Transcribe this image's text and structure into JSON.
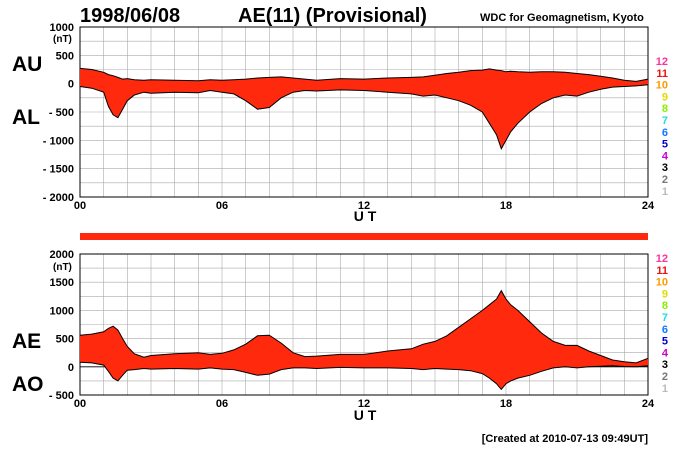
{
  "header": {
    "date": "1998/06/08",
    "title": "AE(11) (Provisional)",
    "source": "WDC for Geomagnetism, Kyoto"
  },
  "footer": {
    "created": "[Created at 2010-07-13 09:49UT]"
  },
  "colors": {
    "fill": "#ff2a0e",
    "outline": "#000000",
    "grid": "#aaaaaa",
    "highlight": "#ffdd00"
  },
  "station_legend": [
    {
      "label": "12",
      "color": "#ff3399"
    },
    {
      "label": "11",
      "color": "#ee1111"
    },
    {
      "label": "10",
      "color": "#ff9900"
    },
    {
      "label": "9",
      "color": "#dddd00"
    },
    {
      "label": "8",
      "color": "#88ee00"
    },
    {
      "label": "7",
      "color": "#22dddd"
    },
    {
      "label": "6",
      "color": "#1177ff"
    },
    {
      "label": "5",
      "color": "#0000cc"
    },
    {
      "label": "4",
      "color": "#cc00cc"
    },
    {
      "label": "3",
      "color": "#000000"
    },
    {
      "label": "2",
      "color": "#777777"
    },
    {
      "label": "1",
      "color": "#bbbbbb"
    }
  ],
  "chart_data": [
    {
      "type": "area",
      "panel": "upper",
      "left_labels": [
        "AU",
        "AL"
      ],
      "ylabel": "(nT)",
      "xlabel": "U T",
      "xlim": [
        0,
        24
      ],
      "ylim": [
        -2000,
        1000
      ],
      "yticks": [
        1000,
        500,
        0,
        -500,
        -1000,
        -1500,
        -2000
      ],
      "ytick_labels": [
        "1000",
        "500",
        "0",
        "- 500",
        "- 1000",
        "- 1500",
        "- 2000"
      ],
      "xticks": [
        0,
        6,
        12,
        18,
        24
      ],
      "xtick_labels": [
        "00",
        "06",
        "12",
        "18",
        "24"
      ],
      "grid": true,
      "x": [
        0,
        0.5,
        1.0,
        1.2,
        1.4,
        1.6,
        1.8,
        2.0,
        2.3,
        2.7,
        3,
        4,
        5,
        5.5,
        6,
        6.5,
        7,
        7.5,
        8,
        8.5,
        9,
        9.5,
        10,
        11,
        12,
        13,
        14,
        14.5,
        15,
        15.5,
        16,
        16.5,
        17,
        17.3,
        17.6,
        17.8,
        18,
        18.2,
        18.5,
        19,
        19.5,
        20,
        20.5,
        21,
        21.5,
        22,
        22.5,
        23,
        23.5,
        24
      ],
      "series": [
        {
          "name": "AU",
          "values": [
            270,
            250,
            200,
            160,
            140,
            110,
            80,
            90,
            70,
            60,
            70,
            60,
            50,
            70,
            60,
            70,
            80,
            100,
            110,
            120,
            100,
            80,
            60,
            90,
            80,
            100,
            110,
            120,
            150,
            180,
            200,
            230,
            240,
            260,
            240,
            230,
            210,
            220,
            210,
            200,
            210,
            210,
            200,
            180,
            160,
            130,
            100,
            60,
            40,
            80
          ]
        },
        {
          "name": "AL",
          "values": [
            -50,
            -80,
            -150,
            -400,
            -550,
            -600,
            -450,
            -300,
            -200,
            -150,
            -170,
            -150,
            -160,
            -120,
            -150,
            -180,
            -300,
            -450,
            -420,
            -250,
            -150,
            -120,
            -130,
            -110,
            -120,
            -150,
            -180,
            -220,
            -200,
            -250,
            -300,
            -380,
            -500,
            -700,
            -900,
            -1150,
            -1000,
            -850,
            -700,
            -500,
            -350,
            -250,
            -200,
            -220,
            -150,
            -100,
            -60,
            -50,
            -40,
            -20
          ]
        }
      ]
    },
    {
      "type": "area",
      "panel": "lower",
      "left_labels": [
        "AE",
        "AO"
      ],
      "ylabel": "(nT)",
      "xlabel": "U T",
      "xlim": [
        0,
        24
      ],
      "ylim": [
        -500,
        2000
      ],
      "yticks": [
        2000,
        1500,
        1000,
        500,
        0,
        -500
      ],
      "ytick_labels": [
        "2000",
        "1500",
        "1000",
        "500",
        "0",
        "- 500"
      ],
      "xticks": [
        0,
        6,
        12,
        18,
        24
      ],
      "xtick_labels": [
        "00",
        "06",
        "12",
        "18",
        "24"
      ],
      "grid": true,
      "x": [
        0,
        0.5,
        1.0,
        1.2,
        1.4,
        1.6,
        1.8,
        2.0,
        2.3,
        2.7,
        3,
        4,
        5,
        5.5,
        6,
        6.5,
        7,
        7.5,
        8,
        8.5,
        9,
        9.5,
        10,
        11,
        12,
        13,
        14,
        14.5,
        15,
        15.5,
        16,
        16.5,
        17,
        17.3,
        17.6,
        17.8,
        18,
        18.2,
        18.5,
        19,
        19.5,
        20,
        20.5,
        21,
        21.5,
        22,
        22.5,
        23,
        23.5,
        24
      ],
      "series": [
        {
          "name": "AE",
          "values": [
            560,
            580,
            620,
            680,
            720,
            650,
            500,
            360,
            230,
            170,
            200,
            230,
            250,
            220,
            240,
            300,
            400,
            550,
            560,
            420,
            250,
            180,
            190,
            220,
            220,
            280,
            320,
            400,
            450,
            550,
            700,
            850,
            1000,
            1100,
            1200,
            1350,
            1200,
            1100,
            1000,
            800,
            600,
            450,
            380,
            380,
            280,
            200,
            120,
            90,
            70,
            150
          ]
        },
        {
          "name": "AO",
          "values": [
            80,
            70,
            30,
            -80,
            -200,
            -250,
            -150,
            -60,
            -50,
            -30,
            -40,
            -30,
            -40,
            -20,
            -40,
            -50,
            -100,
            -150,
            -130,
            -50,
            -20,
            -20,
            -30,
            -10,
            -20,
            -20,
            -30,
            -50,
            -30,
            -40,
            -50,
            -70,
            -120,
            -200,
            -300,
            -400,
            -300,
            -250,
            -200,
            -150,
            -80,
            -20,
            0,
            -20,
            0,
            10,
            20,
            5,
            0,
            20
          ]
        }
      ]
    }
  ]
}
